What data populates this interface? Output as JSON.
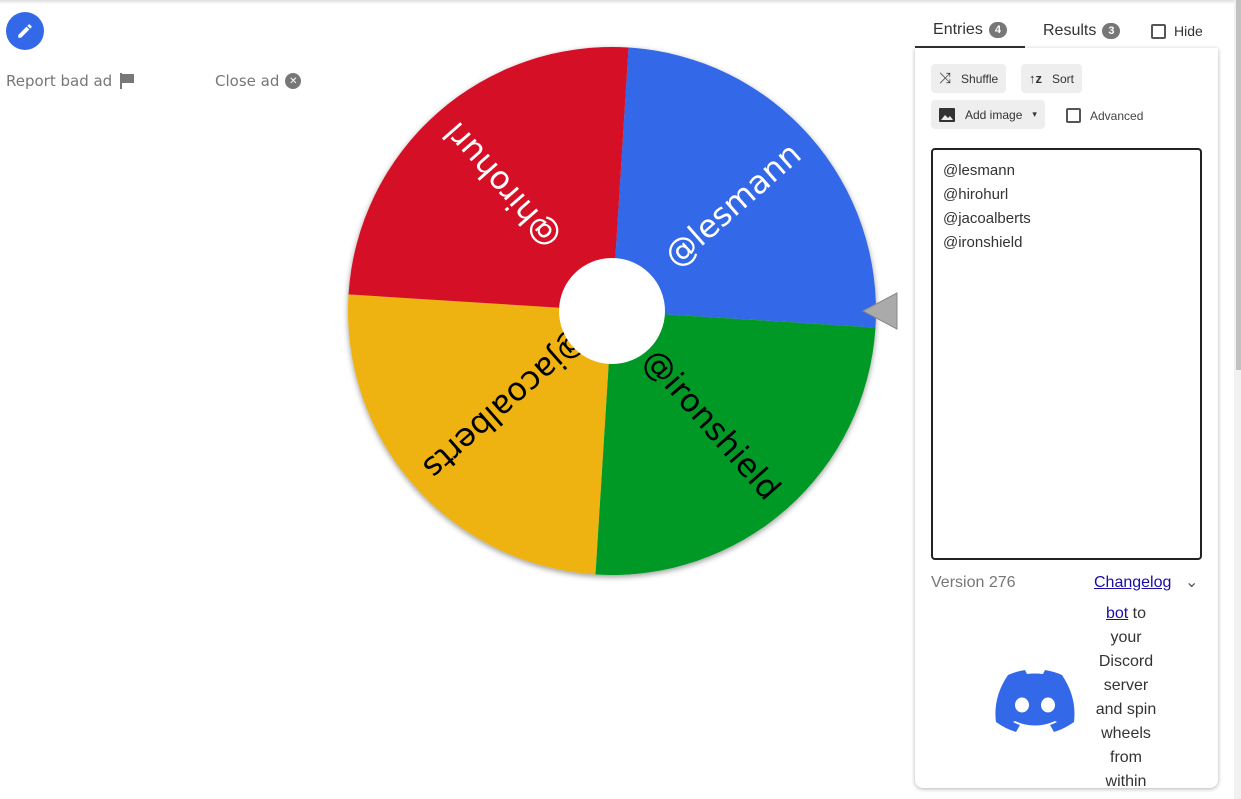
{
  "ad": {
    "report_label": "Report bad ad",
    "close_label": "Close ad"
  },
  "wheel": {
    "entries": [
      {
        "label": "@lesmann",
        "color": "#3369e8",
        "text_color": "#ffffff"
      },
      {
        "label": "@ironshield",
        "color": "#009925",
        "text_color": "#000000"
      },
      {
        "label": "@jacoalberts",
        "color": "#eeb211",
        "text_color": "#000000"
      },
      {
        "label": "@hirohurl",
        "color": "#d50f25",
        "text_color": "#ffffff"
      }
    ],
    "rotation_deg": 3.6
  },
  "tabs": {
    "entries_label": "Entries",
    "entries_count": "4",
    "results_label": "Results",
    "results_count": "3",
    "hide_label": "Hide"
  },
  "toolbar": {
    "shuffle": "Shuffle",
    "sort": "Sort",
    "add_image": "Add image",
    "advanced": "Advanced"
  },
  "entries_text": "@lesmann\n@hirohurl\n@jacoalberts\n@ironshield\n",
  "footer": {
    "version": "Version 276",
    "changelog": "Changelog",
    "promo_link": "bot",
    "promo_text": " to your Discord server and spin wheels from within"
  }
}
